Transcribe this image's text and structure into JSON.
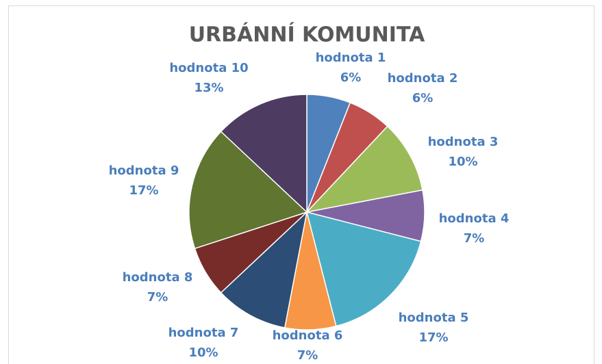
{
  "chart_data": {
    "type": "pie",
    "title": "URBÁNNÍ KOMUNITA",
    "categories": [
      "hodnota 1",
      "hodnota 2",
      "hodnota 3",
      "hodnota 4",
      "hodnota 5",
      "hodnota 6",
      "hodnota 7",
      "hodnota 8",
      "hodnota 9",
      "hodnota 10"
    ],
    "values": [
      6,
      6,
      10,
      7,
      17,
      7,
      10,
      7,
      17,
      13
    ],
    "value_labels": [
      "6%",
      "6%",
      "10%",
      "7%",
      "17%",
      "7%",
      "10%",
      "7%",
      "17%",
      "13%"
    ],
    "colors": [
      "#4f81bd",
      "#c0504d",
      "#9bbb59",
      "#8064a2",
      "#4bacc6",
      "#f79646",
      "#2c4d75",
      "#772c2a",
      "#5f7530",
      "#4d3b62"
    ]
  }
}
